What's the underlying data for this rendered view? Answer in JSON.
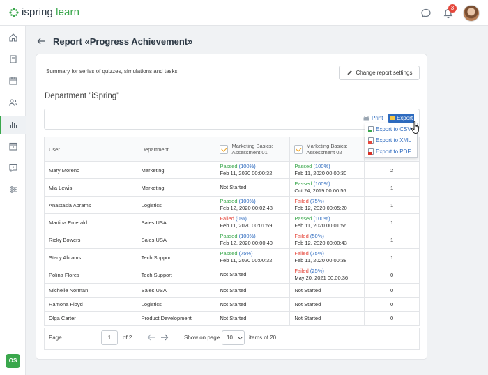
{
  "app": {
    "logo_text_a": "ispring",
    "logo_text_b": "learn",
    "notification_count": "3",
    "user_initials": "OS"
  },
  "colors": {
    "accent_green": "#3aa74c",
    "link_blue": "#2e6bbf",
    "failed_red": "#e5483c",
    "badge_red": "#e5483c"
  },
  "sidebar": {
    "items": [
      "home-icon",
      "book-icon",
      "calendar-icon",
      "users-icon",
      "reports-icon",
      "assignment-icon",
      "help-icon",
      "settings-icon"
    ],
    "active": "reports-icon"
  },
  "page": {
    "title": "Report «Progress Achievement»"
  },
  "card": {
    "summary": "Summary for series of quizzes, simulations and tasks",
    "change_button": "Change report settings",
    "department_title": "Department \"iSpring\""
  },
  "toolbar": {
    "print_label": "Print",
    "export_label": "Export",
    "export_menu": [
      "Export to CSV",
      "Export to XML",
      "Export to PDF"
    ]
  },
  "table": {
    "headers": {
      "user": "User",
      "department": "Department",
      "q1": "Marketing Basics: Assessment 01",
      "q2": "Marketing Basics: Assessment 02"
    },
    "rows": [
      {
        "user": "Mary Moreno",
        "dept": "Marketing",
        "q1_status": "Passed",
        "q1_pct": "(100%)",
        "q1_date": "Feb 11, 2020 00:00:32",
        "q2_status": "Passed",
        "q2_pct": "(100%)",
        "q2_date": "Feb 11, 2020 00:00:30",
        "count": "2"
      },
      {
        "user": "Mia Lewis",
        "dept": "Marketing",
        "q1_status": "Not Started",
        "q1_pct": "",
        "q1_date": "",
        "q2_status": "Passed",
        "q2_pct": "(100%)",
        "q2_date": "Oct 24, 2019 00:00:56",
        "count": "1"
      },
      {
        "user": "Anastasia Abrams",
        "dept": "Logistics",
        "q1_status": "Passed",
        "q1_pct": "(100%)",
        "q1_date": "Feb 12, 2020 00:02:48",
        "q2_status": "Failed",
        "q2_pct": "(75%)",
        "q2_date": "Feb 12, 2020 00:05:20",
        "count": "1"
      },
      {
        "user": "Martina Emerald",
        "dept": "Sales USA",
        "q1_status": "Failed",
        "q1_pct": "(0%)",
        "q1_date": "Feb 11, 2020 00:01:59",
        "q2_status": "Passed",
        "q2_pct": "(100%)",
        "q2_date": "Feb 11, 2020 00:01:56",
        "count": "1"
      },
      {
        "user": "Ricky Bowers",
        "dept": "Sales USA",
        "q1_status": "Passed",
        "q1_pct": "(100%)",
        "q1_date": "Feb 12, 2020 00:00:40",
        "q2_status": "Failed",
        "q2_pct": "(50%)",
        "q2_date": "Feb 12, 2020 00:00:43",
        "count": "1"
      },
      {
        "user": "Stacy Abrams",
        "dept": "Tech Support",
        "q1_status": "Passed",
        "q1_pct": "(75%)",
        "q1_date": "Feb 11, 2020 00:00:32",
        "q2_status": "Failed",
        "q2_pct": "(75%)",
        "q2_date": "Feb 11, 2020 00:00:38",
        "count": "1"
      },
      {
        "user": "Polina Flores",
        "dept": "Tech Support",
        "q1_status": "Not Started",
        "q1_pct": "",
        "q1_date": "",
        "q2_status": "Failed",
        "q2_pct": "(25%)",
        "q2_date": "May 20, 2021 00:00:36",
        "count": "0"
      },
      {
        "user": "Michelle Norman",
        "dept": "Sales USA",
        "q1_status": "Not Started",
        "q1_pct": "",
        "q1_date": "",
        "q2_status": "Not Started",
        "q2_pct": "",
        "q2_date": "",
        "count": "0"
      },
      {
        "user": "Ramona Floyd",
        "dept": "Logistics",
        "q1_status": "Not Started",
        "q1_pct": "",
        "q1_date": "",
        "q2_status": "Not Started",
        "q2_pct": "",
        "q2_date": "",
        "count": "0"
      },
      {
        "user": "Olga Carter",
        "dept": "Product Development",
        "q1_status": "Not Started",
        "q1_pct": "",
        "q1_date": "",
        "q2_status": "Not Started",
        "q2_pct": "",
        "q2_date": "",
        "count": "0"
      }
    ]
  },
  "pager": {
    "page_label": "Page",
    "page_value": "1",
    "of_label": "of 2",
    "show_label": "Show on page",
    "size_value": "10",
    "items_label": "items of 20"
  }
}
